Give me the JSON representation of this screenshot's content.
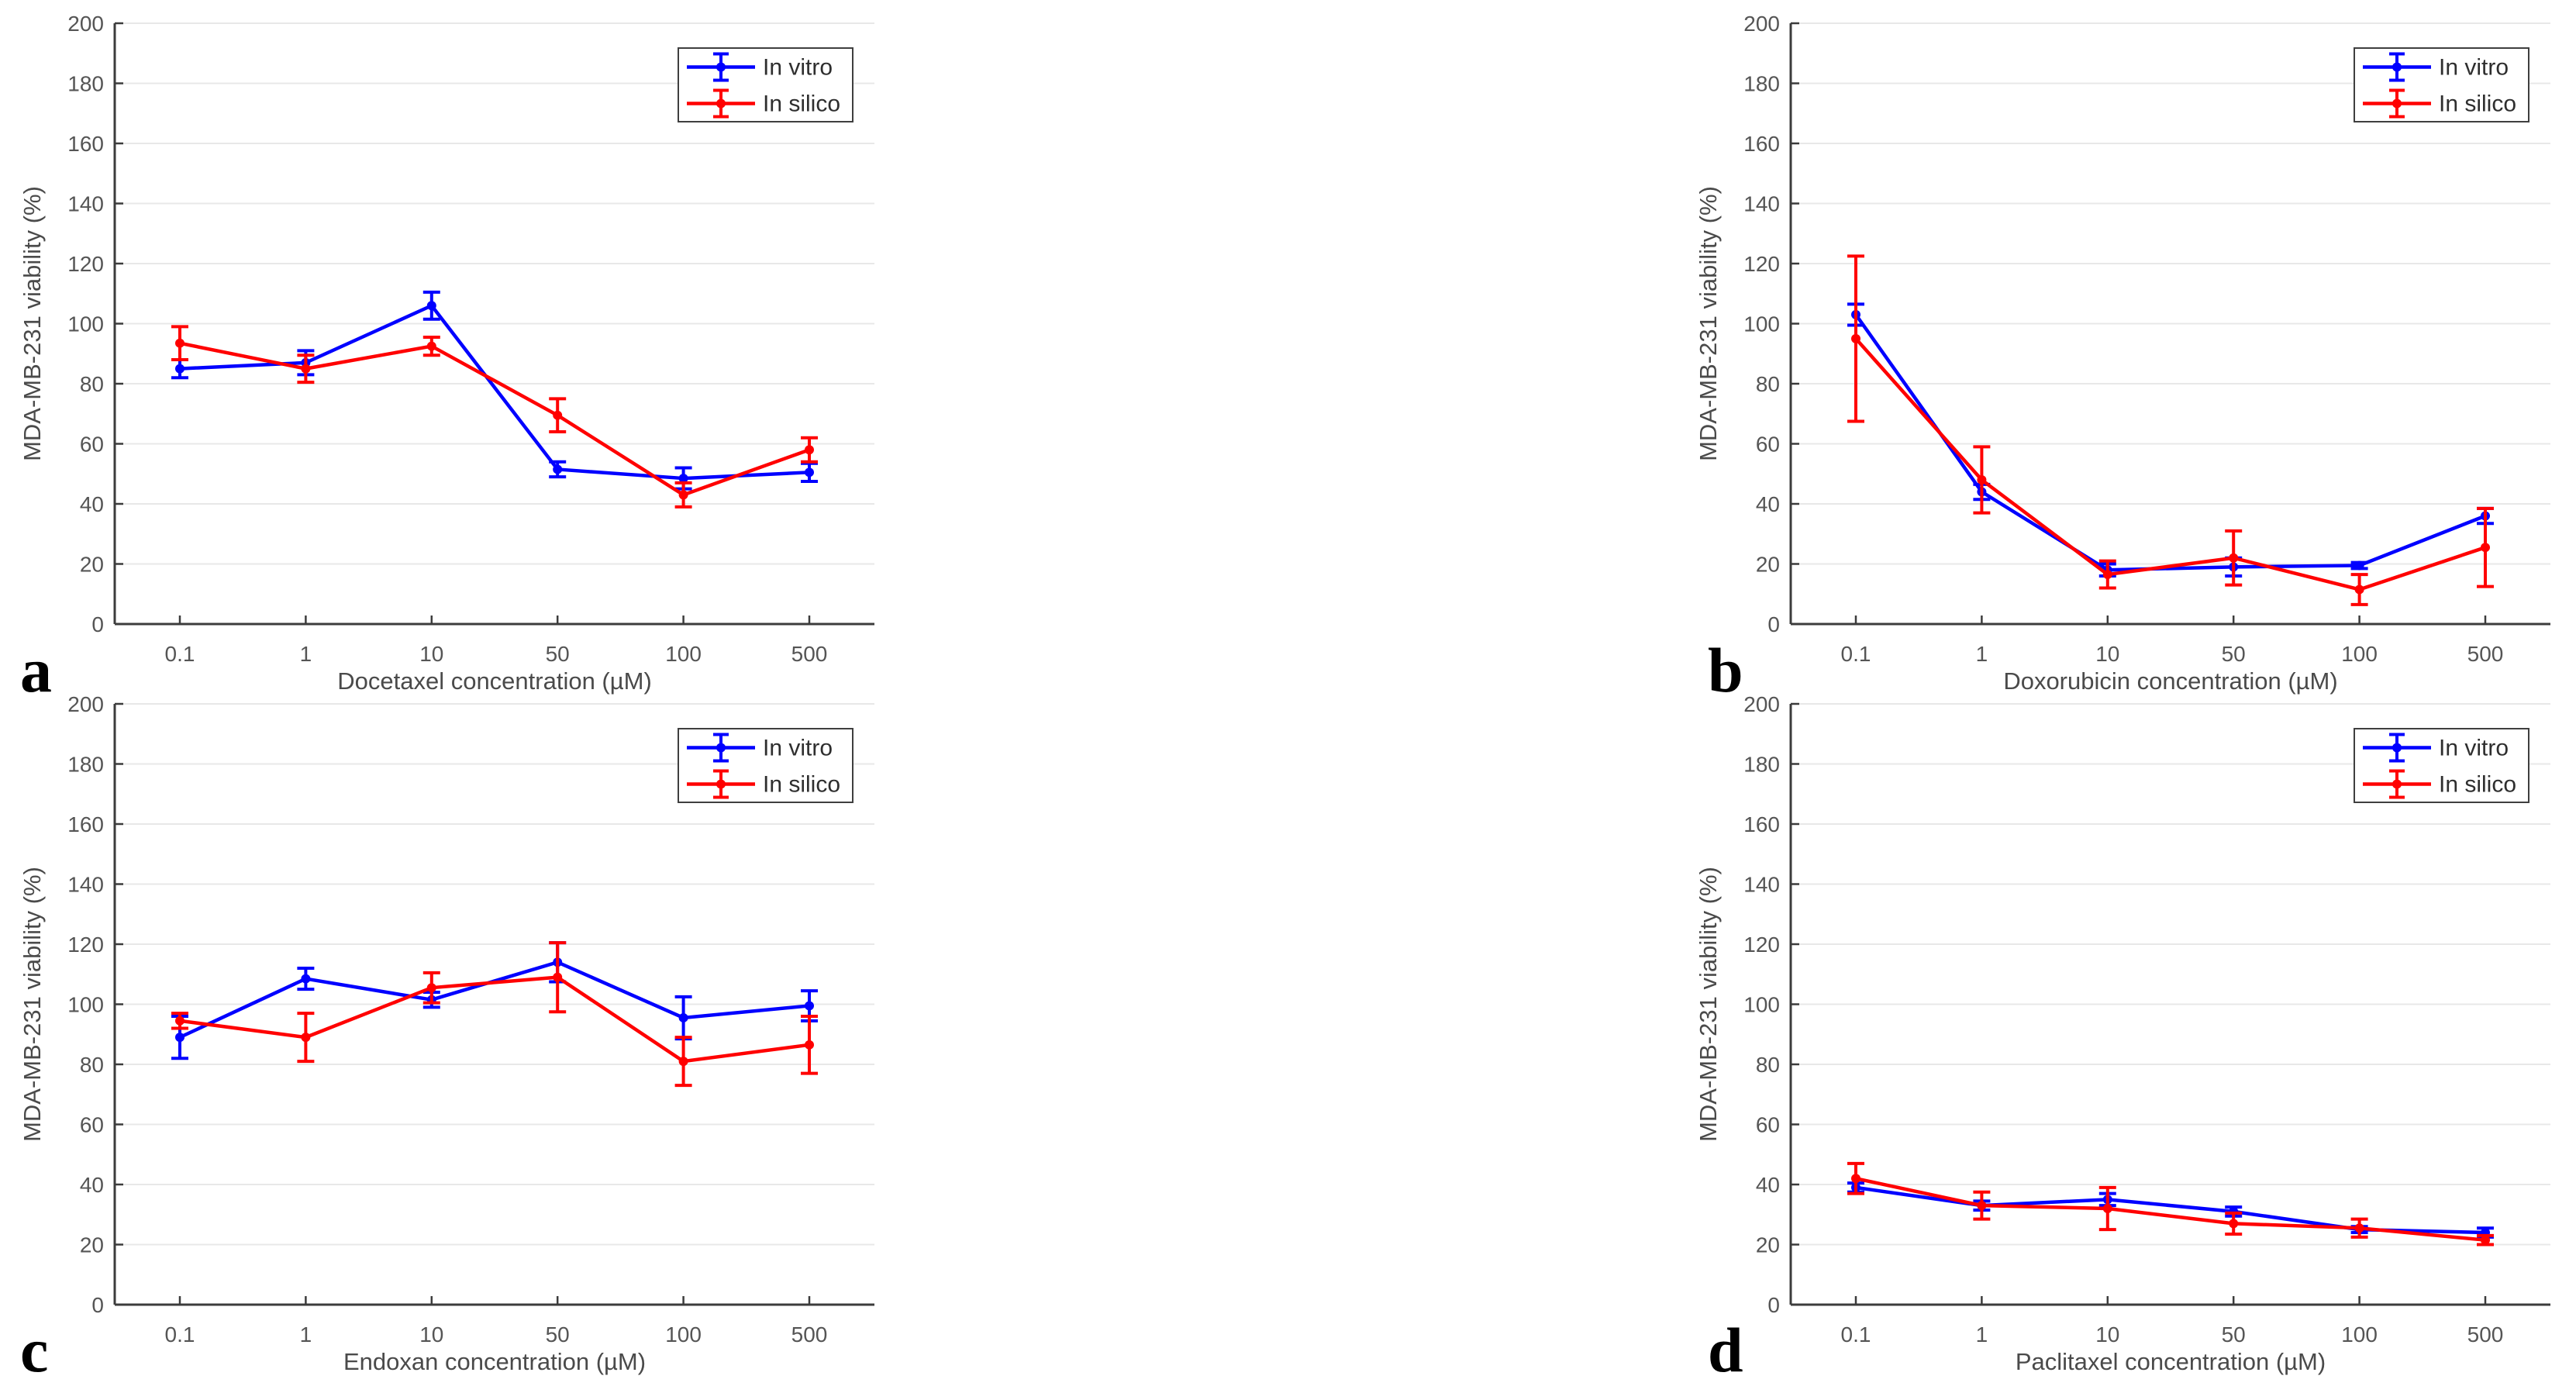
{
  "figure": {
    "colors": {
      "in_vitro": "#0000ff",
      "in_silico": "#ff0000",
      "grid": "#e8e8e8",
      "axis": "#3c3c3c",
      "tick_label": "#555555",
      "axis_label": "#4a4a4a",
      "legend_border": "#3f3f3f",
      "legend_text": "#2e2e2e",
      "background": "#ffffff",
      "panel_letter": "#000000"
    }
  },
  "chart_data": [
    {
      "panel_letter": "a",
      "type": "line",
      "xlabel": "Docetaxel concentration (µM)",
      "ylabel": "MDA-MB-231 viability (%)",
      "categories": [
        "0.1",
        "1",
        "10",
        "50",
        "100",
        "500"
      ],
      "ylim": [
        0,
        200
      ],
      "ytick_step": 20,
      "grid": "horizontal",
      "legend_position": "top-right",
      "series": [
        {
          "name": "In vitro",
          "color_key": "in_vitro",
          "values": [
            85,
            87,
            106,
            51.5,
            48.5,
            50.5
          ],
          "err": [
            3,
            4,
            4.5,
            2.5,
            3.5,
            3
          ]
        },
        {
          "name": "In silico",
          "color_key": "in_silico",
          "values": [
            93.5,
            85,
            92.5,
            69.5,
            43,
            58
          ],
          "err": [
            5.5,
            4.5,
            3,
            5.5,
            4,
            4
          ]
        }
      ]
    },
    {
      "panel_letter": "b",
      "type": "line",
      "xlabel": "Doxorubicin concentration (µM)",
      "ylabel": "MDA-MB-231 viability (%)",
      "categories": [
        "0.1",
        "1",
        "10",
        "50",
        "100",
        "500"
      ],
      "ylim": [
        0,
        200
      ],
      "ytick_step": 20,
      "grid": "horizontal",
      "legend_position": "top-right",
      "series": [
        {
          "name": "In vitro",
          "color_key": "in_vitro",
          "values": [
            103,
            44,
            18,
            19,
            19.5,
            36
          ],
          "err": [
            3.5,
            2.5,
            2,
            3,
            1,
            2.5
          ]
        },
        {
          "name": "In silico",
          "color_key": "in_silico",
          "values": [
            95,
            48,
            16.5,
            22,
            11.5,
            25.5
          ],
          "err": [
            27.5,
            11,
            4.5,
            9,
            5,
            13
          ]
        }
      ]
    },
    {
      "panel_letter": "c",
      "type": "line",
      "xlabel": "Endoxan concentration (µM)",
      "ylabel": "MDA-MB-231 viability (%)",
      "categories": [
        "0.1",
        "1",
        "10",
        "50",
        "100",
        "500"
      ],
      "ylim": [
        0,
        200
      ],
      "ytick_step": 20,
      "grid": "horizontal",
      "legend_position": "top-right",
      "series": [
        {
          "name": "In vitro",
          "color_key": "in_vitro",
          "values": [
            89,
            108.5,
            101.5,
            114,
            95.5,
            99.5
          ],
          "err": [
            7,
            3.5,
            2.5,
            6.5,
            7,
            5
          ]
        },
        {
          "name": "In silico",
          "color_key": "in_silico",
          "values": [
            94.5,
            89,
            105.5,
            109,
            81,
            86.5
          ],
          "err": [
            2.5,
            8,
            5,
            11.5,
            8,
            9.5
          ]
        }
      ]
    },
    {
      "panel_letter": "d",
      "type": "line",
      "xlabel": "Paclitaxel concentration (µM)",
      "ylabel": "MDA-MB-231 viability (%)",
      "categories": [
        "0.1",
        "1",
        "10",
        "50",
        "100",
        "500"
      ],
      "ylim": [
        0,
        200
      ],
      "ytick_step": 20,
      "grid": "horizontal",
      "legend_position": "top-right",
      "series": [
        {
          "name": "In vitro",
          "color_key": "in_vitro",
          "values": [
            39,
            33,
            35,
            31,
            25,
            24
          ],
          "err": [
            1.5,
            1.5,
            2,
            1.5,
            1,
            1.5
          ]
        },
        {
          "name": "In silico",
          "color_key": "in_silico",
          "values": [
            42,
            33,
            32,
            27,
            25.5,
            21.5
          ],
          "err": [
            5,
            4.5,
            7,
            3.5,
            3,
            1.5
          ]
        }
      ]
    }
  ]
}
